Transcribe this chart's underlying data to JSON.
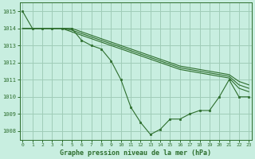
{
  "title": "Graphe pression niveau de la mer (hPa)",
  "bg_color": "#c8eee0",
  "grid_color": "#a0ccb8",
  "line_color": "#2d6e2d",
  "ylim": [
    1007.5,
    1015.5
  ],
  "yticks": [
    1008,
    1009,
    1010,
    1011,
    1012,
    1013,
    1014,
    1015
  ],
  "xlim": [
    -0.3,
    23.3
  ],
  "xticks": [
    0,
    1,
    2,
    3,
    4,
    5,
    6,
    7,
    8,
    9,
    10,
    11,
    12,
    13,
    14,
    15,
    16,
    17,
    18,
    19,
    20,
    21,
    22,
    23
  ],
  "series_no_marker": [
    [
      1014.0,
      1014.0,
      1014.0,
      1014.0,
      1014.0,
      1013.8,
      1013.6,
      1013.4,
      1013.2,
      1013.0,
      1012.8,
      1012.6,
      1012.4,
      1012.2,
      1012.0,
      1011.8,
      1011.6,
      1011.5,
      1011.4,
      1011.3,
      1011.2,
      1011.1,
      1010.5,
      1010.3
    ],
    [
      1014.0,
      1014.0,
      1014.0,
      1014.0,
      1014.0,
      1013.9,
      1013.7,
      1013.5,
      1013.3,
      1013.1,
      1012.9,
      1012.7,
      1012.5,
      1012.3,
      1012.1,
      1011.9,
      1011.7,
      1011.6,
      1011.5,
      1011.4,
      1011.3,
      1011.2,
      1010.7,
      1010.5
    ],
    [
      1014.0,
      1014.0,
      1014.0,
      1014.0,
      1014.0,
      1014.0,
      1013.8,
      1013.6,
      1013.4,
      1013.2,
      1013.0,
      1012.8,
      1012.6,
      1012.4,
      1012.2,
      1012.0,
      1011.8,
      1011.7,
      1011.6,
      1011.5,
      1011.4,
      1011.3,
      1010.9,
      1010.7
    ]
  ],
  "series_marker": [
    [
      1015.0,
      1014.0,
      1014.0,
      1014.0,
      1014.0,
      1014.0,
      1013.3,
      1013.0,
      1012.8,
      1012.1,
      1011.0,
      1009.4,
      1008.5,
      1007.8,
      1008.1,
      1008.7,
      1008.7,
      1009.0,
      1009.2,
      1009.2,
      1010.0,
      1011.0,
      1010.0,
      1010.0
    ]
  ]
}
